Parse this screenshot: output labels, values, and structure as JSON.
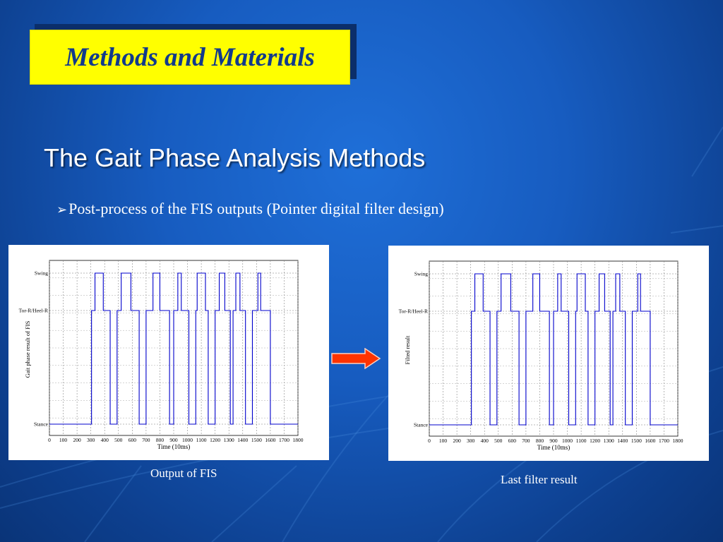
{
  "slide": {
    "title": "Methods and Materials",
    "subtitle": "The Gait Phase Analysis Methods",
    "bullet_marker": "➢",
    "bullet_text": "Post-process of the FIS outputs (Pointer digital filter design)",
    "caption_left": "Output of FIS",
    "caption_right": "Last filter result",
    "colors": {
      "title_bg": "#ffff00",
      "title_text": "#123a8c",
      "signal_line": "#0000cc",
      "arrow": "#ff3300"
    },
    "icons": {
      "arrow": "right-arrow-icon"
    }
  },
  "chart_data": [
    {
      "type": "line",
      "xlabel": "Time (10ms)",
      "ylabel": "Gait phase result of FIS",
      "xlim": [
        0,
        1800
      ],
      "x_ticks": [
        "0",
        "100",
        "200",
        "300",
        "400",
        "500",
        "600",
        "700",
        "800",
        "900",
        "1000",
        "1100",
        "1200",
        "1300",
        "1400",
        "1500",
        "1600",
        "1700",
        "1800"
      ],
      "y_levels": [
        0,
        1,
        2
      ],
      "y_tick_labels": [
        "Stance",
        "Tor-R/Heel-R",
        "Swing"
      ],
      "grid": true,
      "series": [
        {
          "x": [
            0,
            305,
            305,
            330,
            330,
            390,
            390,
            440,
            440,
            490,
            490,
            520,
            520,
            590,
            590,
            650,
            650,
            700,
            700,
            750,
            750,
            800,
            800,
            870,
            870,
            900,
            900,
            930,
            930,
            955,
            955,
            1010,
            1010,
            1060,
            1060,
            1070,
            1070,
            1130,
            1130,
            1150,
            1150,
            1200,
            1200,
            1230,
            1230,
            1270,
            1270,
            1310,
            1310,
            1330,
            1330,
            1350,
            1350,
            1380,
            1380,
            1420,
            1420,
            1470,
            1470,
            1510,
            1510,
            1530,
            1530,
            1600,
            1600,
            1800
          ],
          "y": [
            0,
            0,
            1,
            1,
            2,
            2,
            1,
            1,
            0,
            0,
            1,
            1,
            2,
            2,
            1,
            1,
            0,
            0,
            1,
            1,
            2,
            2,
            1,
            1,
            0,
            0,
            1,
            1,
            2,
            2,
            1,
            1,
            0,
            0,
            1,
            1,
            2,
            2,
            1,
            1,
            0,
            0,
            1,
            1,
            2,
            2,
            1,
            1,
            0,
            0,
            1,
            1,
            2,
            2,
            1,
            1,
            0,
            0,
            1,
            1,
            2,
            2,
            1,
            1,
            0,
            0
          ]
        }
      ]
    },
    {
      "type": "line",
      "xlabel": "Time (10ms)",
      "ylabel": "Filted result",
      "xlim": [
        0,
        1800
      ],
      "x_ticks": [
        "0",
        "100",
        "200",
        "300",
        "400",
        "500",
        "600",
        "700",
        "800",
        "900",
        "1000",
        "1100",
        "1200",
        "1300",
        "1400",
        "1500",
        "1600",
        "1700",
        "1800"
      ],
      "y_levels": [
        0,
        1,
        2
      ],
      "y_tick_labels": [
        "Stance",
        "Tor-R/Heel-R",
        "Swing"
      ],
      "grid": true,
      "series": [
        {
          "x": [
            0,
            305,
            305,
            330,
            330,
            390,
            390,
            440,
            440,
            490,
            490,
            520,
            520,
            590,
            590,
            650,
            650,
            700,
            700,
            750,
            750,
            800,
            800,
            870,
            870,
            900,
            900,
            930,
            930,
            955,
            955,
            1010,
            1010,
            1060,
            1060,
            1070,
            1070,
            1130,
            1130,
            1150,
            1150,
            1200,
            1200,
            1230,
            1230,
            1270,
            1270,
            1310,
            1310,
            1330,
            1330,
            1350,
            1350,
            1380,
            1380,
            1420,
            1420,
            1470,
            1470,
            1510,
            1510,
            1530,
            1530,
            1600,
            1600,
            1800
          ],
          "y": [
            0,
            0,
            1,
            1,
            2,
            2,
            1,
            1,
            0,
            0,
            1,
            1,
            2,
            2,
            1,
            1,
            0,
            0,
            1,
            1,
            2,
            2,
            1,
            1,
            0,
            0,
            1,
            1,
            2,
            2,
            1,
            1,
            0,
            0,
            1,
            1,
            2,
            2,
            1,
            1,
            0,
            0,
            1,
            1,
            2,
            2,
            1,
            1,
            0,
            0,
            1,
            1,
            2,
            2,
            1,
            1,
            0,
            0,
            1,
            1,
            2,
            2,
            1,
            1,
            0,
            0
          ]
        }
      ]
    }
  ]
}
